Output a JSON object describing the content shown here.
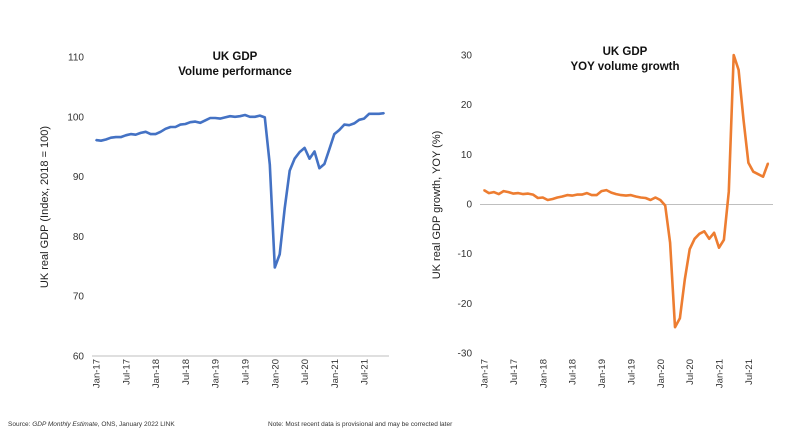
{
  "footer": {
    "source_prefix": "Source: ",
    "source_italic": "GDP Monthly Estimate",
    "source_rest": ", ONS, January 2022 LINK",
    "note": "Note: Most recent data is provisional and may be corrected later"
  },
  "chart_data": [
    {
      "type": "line",
      "title": "UK GDP",
      "subtitle": "Volume performance",
      "xlabel": "",
      "ylabel": "UK real GDP (Index, 2018 = 100)",
      "ylim": [
        60,
        110
      ],
      "yticks": [
        60,
        70,
        80,
        90,
        100,
        110
      ],
      "x_range": [
        "2017-01",
        "2021-11"
      ],
      "xtick_labels": [
        "Jan-17",
        "Jul-17",
        "Jan-18",
        "Jul-18",
        "Jan-19",
        "Jul-19",
        "Jan-20",
        "Jul-20",
        "Jan-21",
        "Jul-21"
      ],
      "xtick_dates": [
        "2017-01",
        "2017-07",
        "2018-01",
        "2018-07",
        "2019-01",
        "2019-07",
        "2020-01",
        "2020-07",
        "2021-01",
        "2021-07"
      ],
      "grid": false,
      "legend": "none",
      "line_color": "#4472c4",
      "series": [
        {
          "x": [
            "2017-01",
            "2017-02",
            "2017-03",
            "2017-04",
            "2017-05",
            "2017-06",
            "2017-07",
            "2017-08",
            "2017-09",
            "2017-10",
            "2017-11",
            "2017-12",
            "2018-01",
            "2018-02",
            "2018-03",
            "2018-04",
            "2018-05",
            "2018-06",
            "2018-07",
            "2018-08",
            "2018-09",
            "2018-10",
            "2018-11",
            "2018-12",
            "2019-01",
            "2019-02",
            "2019-03",
            "2019-04",
            "2019-05",
            "2019-06",
            "2019-07",
            "2019-08",
            "2019-09",
            "2019-10",
            "2019-11",
            "2019-12",
            "2020-01",
            "2020-02",
            "2020-03",
            "2020-04",
            "2020-05",
            "2020-06",
            "2020-07",
            "2020-08",
            "2020-09",
            "2020-10",
            "2020-11",
            "2020-12",
            "2021-01",
            "2021-02",
            "2021-03",
            "2021-04",
            "2021-05",
            "2021-06",
            "2021-07",
            "2021-08",
            "2021-09",
            "2021-10",
            "2021-11"
          ],
          "values": [
            96.1,
            96.0,
            96.2,
            96.5,
            96.6,
            96.6,
            96.9,
            97.1,
            97.0,
            97.3,
            97.5,
            97.1,
            97.1,
            97.5,
            98.0,
            98.3,
            98.3,
            98.7,
            98.8,
            99.1,
            99.2,
            99.0,
            99.4,
            99.8,
            99.8,
            99.7,
            99.9,
            100.1,
            100.0,
            100.1,
            100.3,
            100.0,
            100.0,
            100.2,
            99.9,
            92.0,
            74.8,
            77.0,
            84.7,
            91.0,
            93.0,
            94.1,
            94.8,
            93.0,
            94.2,
            91.4,
            92.1,
            94.6,
            97.1,
            97.8,
            98.7,
            98.6,
            98.9,
            99.5,
            99.7,
            100.5,
            100.5,
            100.5,
            100.6
          ]
        }
      ]
    },
    {
      "type": "line",
      "title": "UK GDP",
      "subtitle": "YOY volume growth",
      "xlabel": "",
      "ylabel": "UK real GDP growth, YOY (%)",
      "ylim": [
        -30,
        30
      ],
      "yticks": [
        -30,
        -20,
        -10,
        0,
        10,
        20,
        30
      ],
      "x_range": [
        "2017-01",
        "2021-11"
      ],
      "xtick_labels": [
        "Jan-17",
        "Jul-17",
        "Jan-18",
        "Jul-18",
        "Jan-19",
        "Jul-19",
        "Jan-20",
        "Jul-20",
        "Jan-21",
        "Jul-21"
      ],
      "xtick_dates": [
        "2017-01",
        "2017-07",
        "2018-01",
        "2018-07",
        "2019-01",
        "2019-07",
        "2020-01",
        "2020-07",
        "2021-01",
        "2021-07"
      ],
      "grid": false,
      "legend": "none",
      "line_color": "#ed7d31",
      "series": [
        {
          "x": [
            "2017-01",
            "2017-02",
            "2017-03",
            "2017-04",
            "2017-05",
            "2017-06",
            "2017-07",
            "2017-08",
            "2017-09",
            "2017-10",
            "2017-11",
            "2017-12",
            "2018-01",
            "2018-02",
            "2018-03",
            "2018-04",
            "2018-05",
            "2018-06",
            "2018-07",
            "2018-08",
            "2018-09",
            "2018-10",
            "2018-11",
            "2018-12",
            "2019-01",
            "2019-02",
            "2019-03",
            "2019-04",
            "2019-05",
            "2019-06",
            "2019-07",
            "2019-08",
            "2019-09",
            "2019-10",
            "2019-11",
            "2019-12",
            "2020-01",
            "2020-02",
            "2020-03",
            "2020-04",
            "2020-05",
            "2020-06",
            "2020-07",
            "2020-08",
            "2020-09",
            "2020-10",
            "2020-11",
            "2020-12",
            "2021-01",
            "2021-02",
            "2021-03",
            "2021-04",
            "2021-05",
            "2021-06",
            "2021-07",
            "2021-08",
            "2021-09",
            "2021-10",
            "2021-11"
          ],
          "values": [
            2.8,
            2.2,
            2.4,
            2.0,
            2.6,
            2.4,
            2.1,
            2.2,
            2.0,
            2.1,
            1.9,
            1.2,
            1.3,
            0.8,
            1.0,
            1.3,
            1.5,
            1.8,
            1.7,
            1.9,
            1.9,
            2.2,
            1.8,
            1.8,
            2.6,
            2.8,
            2.3,
            2.0,
            1.8,
            1.7,
            1.8,
            1.5,
            1.3,
            1.2,
            0.8,
            1.3,
            0.8,
            -0.3,
            -7.8,
            -24.8,
            -23.0,
            -15.2,
            -9.1,
            -7.0,
            -6.0,
            -5.5,
            -7.0,
            -5.8,
            -8.8,
            -7.2,
            2.5,
            30.0,
            27.0,
            17.0,
            8.3,
            6.5,
            6.0,
            5.5,
            8.2
          ]
        }
      ]
    }
  ]
}
